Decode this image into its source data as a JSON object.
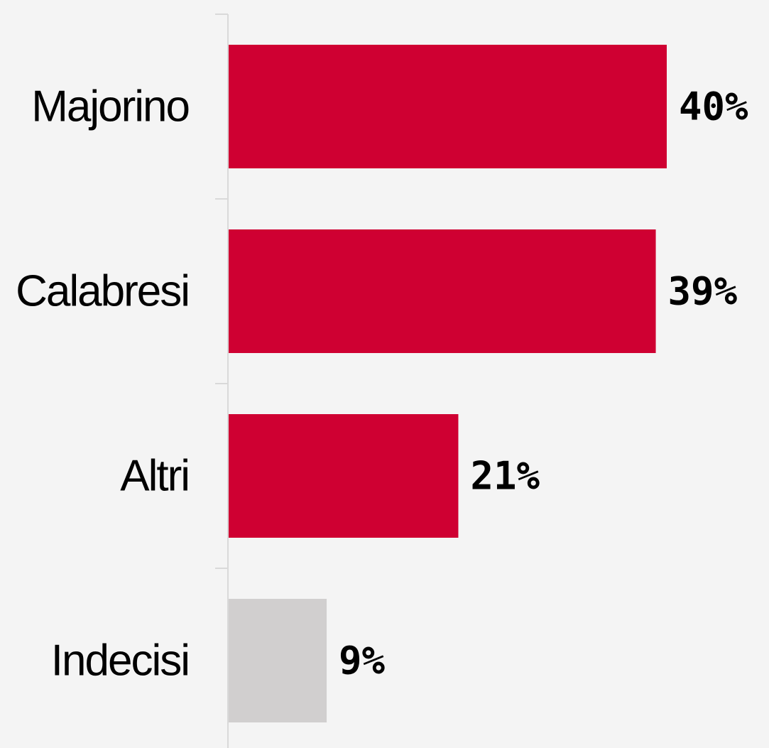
{
  "chart_data": {
    "type": "bar",
    "orientation": "horizontal",
    "categories": [
      "Majorino",
      "Calabresi",
      "Altri",
      "Indecisi"
    ],
    "values": [
      40,
      39,
      21,
      9
    ],
    "value_labels": [
      "40%",
      "39%",
      "21%",
      "9%"
    ],
    "unit": "%",
    "xlim": [
      0,
      40
    ],
    "grid": false,
    "legend": "none",
    "bar_colors": [
      "#cf0032",
      "#cf0032",
      "#cf0032",
      "#d1cfcf"
    ]
  },
  "colors": {
    "background": "#f4f4f4",
    "highlight": "#cf0032",
    "neutral": "#d1cfcf",
    "axis": "#d9d9d9",
    "text": "#000000"
  }
}
